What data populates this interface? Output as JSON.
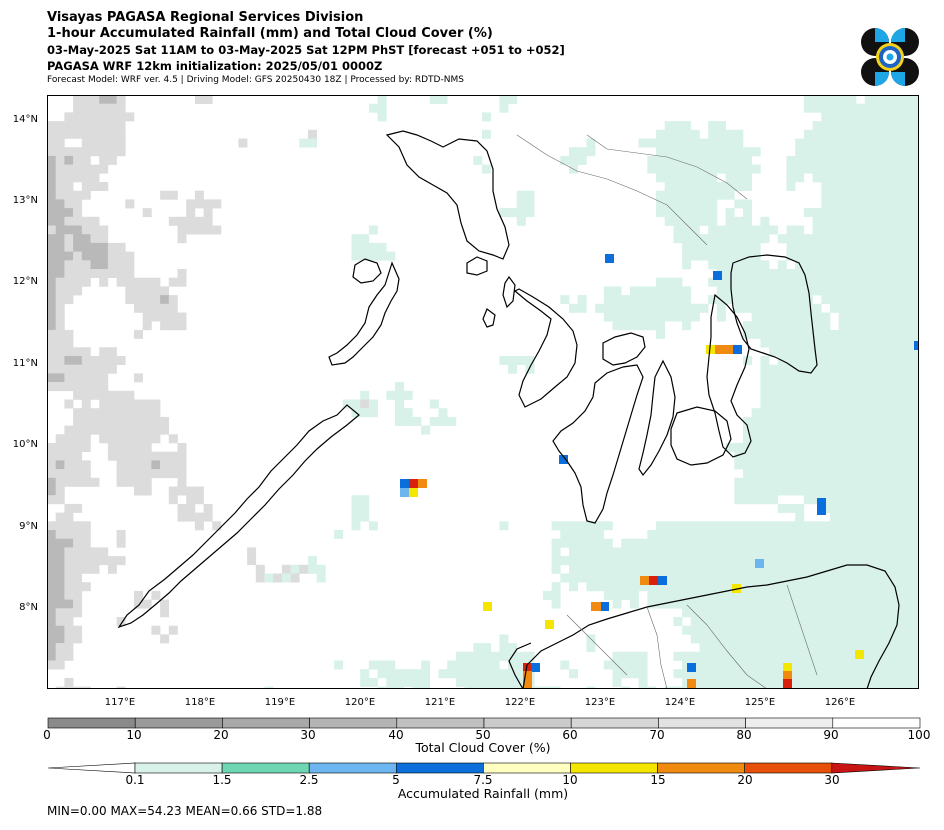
{
  "header": {
    "line1": "Visayas PAGASA Regional Services Division",
    "line2": "1-hour Accumulated Rainfall (mm) and Total Cloud Cover (%)",
    "line3": "03-May-2025 Sat 11AM to 03-May-2025 Sat 12PM PhST [forecast +051 to +052]",
    "line4": "PAGASA WRF 12km initialization: 2025/05/01 0000Z",
    "line5": "Forecast Model: WRF ver. 4.5 | Driving Model: GFS 20250430 18Z | Processed by: RDTD-NMS"
  },
  "map": {
    "lat_labels": [
      "14°N",
      "13°N",
      "12°N",
      "11°N",
      "10°N",
      "9°N",
      "8°N"
    ],
    "lon_labels": [
      "117°E",
      "118°E",
      "119°E",
      "120°E",
      "121°E",
      "122°E",
      "123°E",
      "124°E",
      "125°E",
      "126°E"
    ],
    "lat_range": [
      7.0,
      14.3
    ],
    "lon_range": [
      116.0,
      126.9
    ],
    "colors": {
      "cloud_dark": "#8a8a8a",
      "cloud_mid": "#b9b9b9",
      "cloud_light": "#dcdcdc",
      "rain_light": "#d8f2ea",
      "rain_green": "#6fd6b3",
      "rain_lblue": "#6db5ef",
      "rain_blue": "#0a6fdc",
      "rain_yellow": "#f5e600",
      "rain_orange": "#f08a10",
      "rain_red": "#d8200a"
    }
  },
  "cloud_colorbar": {
    "ticks": [
      "0",
      "10",
      "20",
      "30",
      "40",
      "50",
      "60",
      "70",
      "80",
      "90",
      "100"
    ],
    "colors": [
      "#8a8a8a",
      "#9a9a9a",
      "#a8a8a8",
      "#b4b4b4",
      "#c0c0c0",
      "#cbcbcb",
      "#d6d6d6",
      "#e2e2e2",
      "#eeeeee",
      "#ffffff"
    ],
    "label": "Total Cloud Cover (%)"
  },
  "rain_colorbar": {
    "ticks": [
      "0.1",
      "1.5",
      "2.5",
      "5",
      "7.5",
      "10",
      "15",
      "20",
      "30"
    ],
    "colors": [
      "#d8f2ea",
      "#6fd6b3",
      "#6db5ef",
      "#0a6fdc",
      "#ffffc0",
      "#f5e600",
      "#f08a10",
      "#e8500a",
      "#c81414"
    ],
    "label": "Accumulated Rainfall (mm)"
  },
  "stats": "MIN=0.00   MAX=54.23   MEAN=0.66   STD=1.88"
}
